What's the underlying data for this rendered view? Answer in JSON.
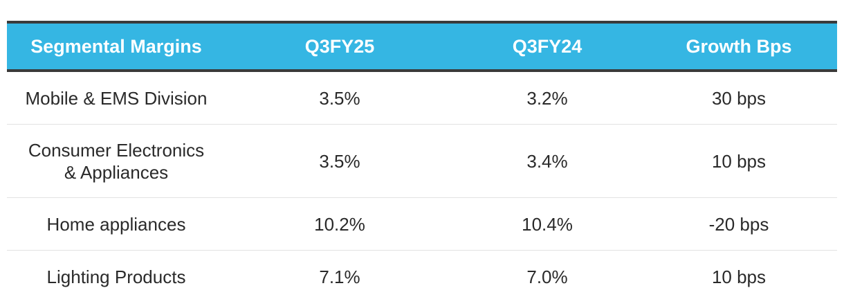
{
  "table": {
    "headers": [
      "Segmental Margins",
      "Q3FY25",
      "Q3FY24",
      "Growth Bps"
    ],
    "rows": [
      [
        "Mobile & EMS Division",
        "3.5%",
        "3.2%",
        "30 bps"
      ],
      [
        "Consumer Electronics\n& Appliances",
        "3.5%",
        "3.4%",
        "10 bps"
      ],
      [
        "Home appliances",
        "10.2%",
        "10.4%",
        "-20 bps"
      ],
      [
        "Lighting Products",
        "7.1%",
        "7.0%",
        "10 bps"
      ]
    ]
  },
  "colors": {
    "header_bg": "#35b6e3",
    "header_text": "#ffffff",
    "rule": "#3a3a3a",
    "row_divider": "#e2e2e2",
    "body_text": "#2a2a2a"
  }
}
